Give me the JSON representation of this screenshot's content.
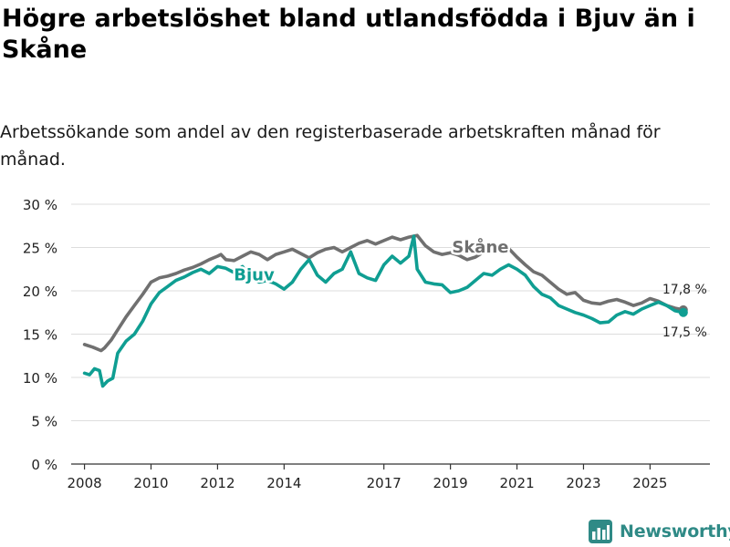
{
  "title": "Högre arbetslöshet bland utlandsfödda i Bjuv än i Skåne",
  "subtitle": "Arbetssökande som andel av den registerbaserade arbetskraften månad för månad.",
  "brand": {
    "name": "Newsworthy",
    "icon": "newsworthy-logo-icon"
  },
  "colors": {
    "bjuv": "#0f9e92",
    "skane": "#707070",
    "grid": "#dddddd",
    "axis": "#333333"
  },
  "chart_data": {
    "type": "line",
    "title": "Högre arbetslöshet bland utlandsfödda i Bjuv än i Skåne",
    "xlabel": "",
    "ylabel": "",
    "xlim": [
      2007.6,
      2026.8
    ],
    "ylim": [
      0,
      30
    ],
    "grid": true,
    "x_ticks": [
      {
        "value": 2008,
        "label": "2008"
      },
      {
        "value": 2010,
        "label": "2010"
      },
      {
        "value": 2012,
        "label": "2012"
      },
      {
        "value": 2014,
        "label": "2014"
      },
      {
        "value": 2017,
        "label": "2017"
      },
      {
        "value": 2019,
        "label": "2019"
      },
      {
        "value": 2021,
        "label": "2021"
      },
      {
        "value": 2023,
        "label": "2023"
      },
      {
        "value": 2025,
        "label": "2025"
      }
    ],
    "y_ticks": [
      {
        "value": 0,
        "label": "0 %"
      },
      {
        "value": 5,
        "label": "5 %"
      },
      {
        "value": 10,
        "label": "10 %"
      },
      {
        "value": 15,
        "label": "15 %"
      },
      {
        "value": 20,
        "label": "20 %"
      },
      {
        "value": 25,
        "label": "25 %"
      },
      {
        "value": 30,
        "label": "30 %"
      }
    ],
    "series": [
      {
        "name": "Skåne",
        "label": "Skåne",
        "label_at": [
          2019.9,
          24.4
        ],
        "end_value_label": "17,8 %",
        "color": "#707070",
        "x": [
          2008.0,
          2008.25,
          2008.5,
          2008.6,
          2008.8,
          2009.0,
          2009.25,
          2009.5,
          2009.75,
          2010.0,
          2010.25,
          2010.5,
          2010.75,
          2011.0,
          2011.25,
          2011.5,
          2011.75,
          2012.0,
          2012.1,
          2012.25,
          2012.5,
          2012.75,
          2013.0,
          2013.25,
          2013.5,
          2013.75,
          2014.0,
          2014.25,
          2014.5,
          2014.75,
          2015.0,
          2015.25,
          2015.5,
          2015.75,
          2016.0,
          2016.25,
          2016.5,
          2016.75,
          2017.0,
          2017.25,
          2017.5,
          2017.75,
          2018.0,
          2018.25,
          2018.5,
          2018.75,
          2019.0,
          2019.25,
          2019.5,
          2019.75,
          2020.0,
          2020.25,
          2020.5,
          2020.75,
          2021.0,
          2021.25,
          2021.5,
          2021.75,
          2022.0,
          2022.25,
          2022.5,
          2022.75,
          2023.0,
          2023.25,
          2023.5,
          2023.75,
          2024.0,
          2024.25,
          2024.5,
          2024.75,
          2025.0,
          2025.25,
          2025.5,
          2025.75,
          2026.0
        ],
        "values": [
          13.8,
          13.5,
          13.1,
          13.4,
          14.3,
          15.5,
          17.0,
          18.3,
          19.6,
          21.0,
          21.5,
          21.7,
          22.0,
          22.4,
          22.7,
          23.1,
          23.6,
          24.0,
          24.2,
          23.6,
          23.5,
          24.0,
          24.5,
          24.2,
          23.6,
          24.2,
          24.5,
          24.8,
          24.3,
          23.8,
          24.4,
          24.8,
          25.0,
          24.5,
          25.0,
          25.5,
          25.8,
          25.4,
          25.8,
          26.2,
          25.9,
          26.2,
          26.4,
          25.2,
          24.5,
          24.2,
          24.4,
          24.1,
          23.6,
          23.9,
          24.5,
          25.1,
          25.3,
          24.9,
          23.9,
          23.0,
          22.2,
          21.8,
          21.0,
          20.2,
          19.6,
          19.8,
          18.9,
          18.6,
          18.5,
          18.8,
          19.0,
          18.7,
          18.3,
          18.6,
          19.1,
          18.8,
          18.3,
          18.0,
          17.8
        ]
      },
      {
        "name": "Bjuv",
        "label": "Bjuv",
        "label_at": [
          2013.1,
          21.2
        ],
        "end_value_label": "17,5 %",
        "color": "#0f9e92",
        "x": [
          2008.0,
          2008.15,
          2008.3,
          2008.45,
          2008.55,
          2008.7,
          2008.85,
          2009.0,
          2009.25,
          2009.5,
          2009.75,
          2010.0,
          2010.25,
          2010.5,
          2010.75,
          2011.0,
          2011.25,
          2011.5,
          2011.75,
          2012.0,
          2012.25,
          2012.5,
          2012.75,
          2013.0,
          2013.25,
          2013.5,
          2013.75,
          2014.0,
          2014.25,
          2014.5,
          2014.75,
          2015.0,
          2015.25,
          2015.5,
          2015.75,
          2016.0,
          2016.25,
          2016.5,
          2016.75,
          2017.0,
          2017.25,
          2017.5,
          2017.75,
          2017.9,
          2018.0,
          2018.25,
          2018.5,
          2018.75,
          2019.0,
          2019.25,
          2019.5,
          2019.75,
          2020.0,
          2020.25,
          2020.5,
          2020.75,
          2021.0,
          2021.25,
          2021.5,
          2021.75,
          2022.0,
          2022.25,
          2022.5,
          2022.75,
          2023.0,
          2023.25,
          2023.5,
          2023.75,
          2024.0,
          2024.25,
          2024.5,
          2024.75,
          2025.0,
          2025.25,
          2025.5,
          2025.75,
          2026.0
        ],
        "values": [
          10.5,
          10.3,
          11.0,
          10.8,
          9.0,
          9.6,
          9.9,
          12.8,
          14.2,
          15.0,
          16.5,
          18.5,
          19.8,
          20.5,
          21.2,
          21.6,
          22.1,
          22.5,
          22.0,
          22.8,
          22.6,
          22.1,
          22.8,
          21.5,
          21.0,
          21.2,
          20.8,
          20.2,
          21.0,
          22.5,
          23.6,
          21.8,
          21.0,
          22.0,
          22.5,
          24.5,
          22.0,
          21.5,
          21.2,
          23.0,
          24.0,
          23.2,
          24.0,
          26.3,
          22.5,
          21.0,
          20.8,
          20.7,
          19.8,
          20.0,
          20.4,
          21.2,
          22.0,
          21.8,
          22.5,
          23.0,
          22.5,
          21.8,
          20.5,
          19.6,
          19.2,
          18.3,
          17.9,
          17.5,
          17.2,
          16.8,
          16.3,
          16.4,
          17.2,
          17.6,
          17.3,
          17.9,
          18.3,
          18.7,
          18.3,
          17.7,
          17.5
        ]
      }
    ]
  }
}
